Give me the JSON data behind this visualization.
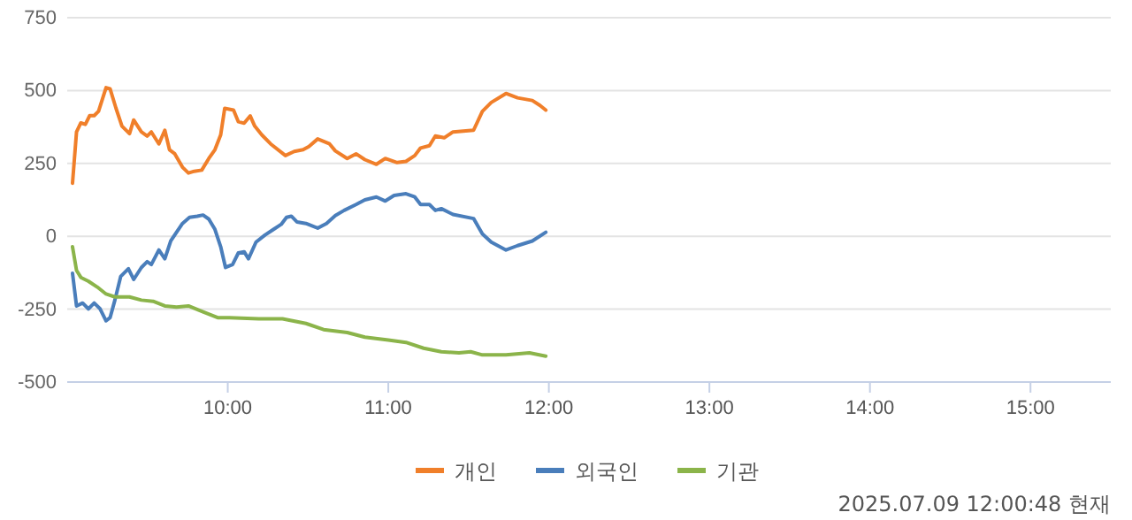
{
  "chart_data": {
    "type": "line",
    "xlim": [
      9,
      15.5
    ],
    "xticks": [
      {
        "value": 10,
        "label": "10:00"
      },
      {
        "value": 11,
        "label": "11:00"
      },
      {
        "value": 12,
        "label": "12:00"
      },
      {
        "value": 13,
        "label": "13:00"
      },
      {
        "value": 14,
        "label": "14:00"
      },
      {
        "value": 15,
        "label": "15:00"
      }
    ],
    "ylim": [
      -500,
      750
    ],
    "yticks": [
      -500,
      -250,
      0,
      250,
      500,
      750
    ],
    "grid": "y",
    "legend": "bottom",
    "marker": "none",
    "line_style": "solid",
    "annotations": [
      "2025.07.09 12:00:48 현재"
    ],
    "series": [
      {
        "name": "개인",
        "color": "#f07f2a",
        "x": [
          9.033,
          9.058,
          9.085,
          9.113,
          9.14,
          9.168,
          9.195,
          9.242,
          9.267,
          9.304,
          9.341,
          9.388,
          9.414,
          9.462,
          9.498,
          9.524,
          9.571,
          9.608,
          9.637,
          9.67,
          9.718,
          9.755,
          9.791,
          9.838,
          9.882,
          9.92,
          9.956,
          9.981,
          10.036,
          10.066,
          10.102,
          10.14,
          10.168,
          10.212,
          10.267,
          10.359,
          10.414,
          10.469,
          10.505,
          10.56,
          10.634,
          10.67,
          10.744,
          10.799,
          10.854,
          10.926,
          10.981,
          11.055,
          11.11,
          11.165,
          11.201,
          11.256,
          11.293,
          11.348,
          11.403,
          11.531,
          11.586,
          11.641,
          11.733,
          11.805,
          11.897,
          11.945,
          11.981
        ],
        "values": [
          182,
          358,
          389,
          384,
          414,
          414,
          429,
          510,
          506,
          439,
          378,
          352,
          399,
          358,
          344,
          358,
          317,
          364,
          297,
          283,
          237,
          217,
          223,
          227,
          267,
          297,
          348,
          439,
          433,
          393,
          388,
          413,
          378,
          348,
          317,
          277,
          291,
          297,
          308,
          334,
          317,
          293,
          267,
          283,
          263,
          247,
          267,
          253,
          257,
          277,
          303,
          311,
          344,
          338,
          358,
          364,
          429,
          459,
          490,
          475,
          466,
          449,
          433
        ]
      },
      {
        "name": "외국인",
        "color": "#4a7ebb",
        "x": [
          9.033,
          9.058,
          9.096,
          9.132,
          9.168,
          9.205,
          9.242,
          9.267,
          9.297,
          9.333,
          9.381,
          9.414,
          9.462,
          9.498,
          9.524,
          9.571,
          9.608,
          9.645,
          9.681,
          9.718,
          9.762,
          9.81,
          9.846,
          9.882,
          9.92,
          9.956,
          9.986,
          10.03,
          10.066,
          10.102,
          10.129,
          10.176,
          10.231,
          10.286,
          10.333,
          10.366,
          10.396,
          10.432,
          10.487,
          10.56,
          10.615,
          10.67,
          10.725,
          10.799,
          10.854,
          10.926,
          10.981,
          11.036,
          11.11,
          11.165,
          11.201,
          11.256,
          11.293,
          11.33,
          11.403,
          11.531,
          11.586,
          11.641,
          11.733,
          11.805,
          11.897,
          11.981
        ],
        "values": [
          -127,
          -239,
          -229,
          -249,
          -229,
          -249,
          -290,
          -279,
          -219,
          -138,
          -111,
          -148,
          -107,
          -87,
          -97,
          -47,
          -77,
          -16,
          14,
          44,
          65,
          69,
          73,
          59,
          24,
          -36,
          -107,
          -97,
          -57,
          -53,
          -77,
          -20,
          4,
          24,
          41,
          65,
          69,
          49,
          44,
          28,
          44,
          71,
          89,
          109,
          125,
          135,
          121,
          140,
          146,
          135,
          109,
          109,
          89,
          95,
          75,
          61,
          8,
          -20,
          -47,
          -32,
          -16,
          14
        ]
      },
      {
        "name": "기관",
        "color": "#8bb44a",
        "x": [
          9.033,
          9.058,
          9.085,
          9.132,
          9.187,
          9.242,
          9.297,
          9.388,
          9.462,
          9.535,
          9.608,
          9.681,
          9.755,
          9.846,
          9.937,
          10.011,
          10.194,
          10.341,
          10.487,
          10.597,
          10.744,
          10.854,
          11.0,
          11.11,
          11.22,
          11.33,
          11.44,
          11.513,
          11.586,
          11.733,
          11.879,
          11.981
        ],
        "values": [
          -36,
          -117,
          -141,
          -154,
          -174,
          -198,
          -208,
          -208,
          -219,
          -223,
          -239,
          -243,
          -239,
          -259,
          -279,
          -279,
          -283,
          -283,
          -299,
          -320,
          -330,
          -346,
          -356,
          -364,
          -384,
          -396,
          -400,
          -396,
          -407,
          -407,
          -400,
          -411
        ]
      }
    ]
  }
}
